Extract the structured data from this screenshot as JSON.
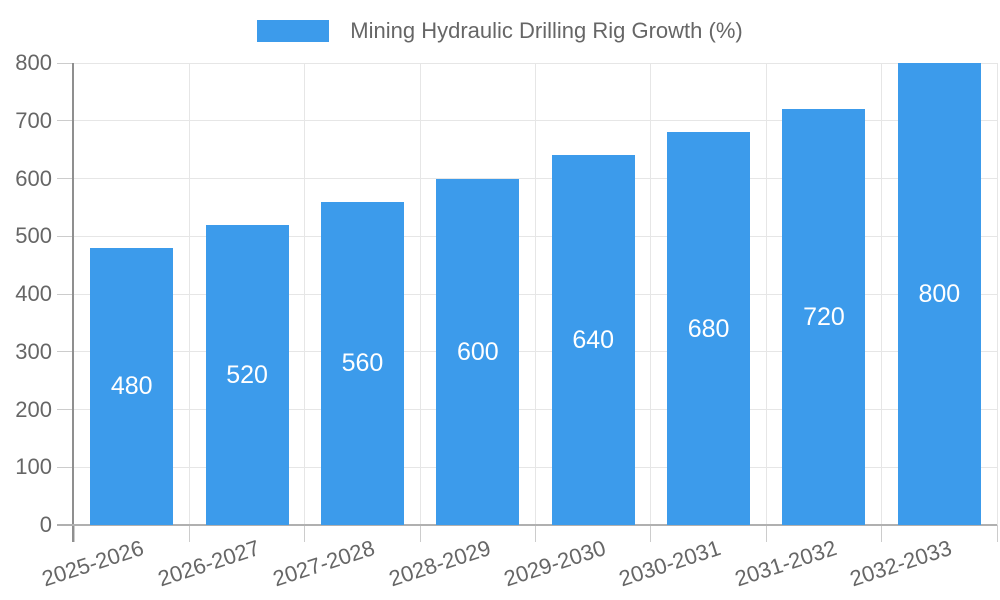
{
  "chart_data": {
    "type": "bar",
    "legend_label": "Mining Hydraulic Drilling Rig Growth (%)",
    "legend_position": "top",
    "categories": [
      "2025-2026",
      "2026-2027",
      "2027-2028",
      "2028-2029",
      "2029-2030",
      "2030-2031",
      "2031-2032",
      "2032-2033"
    ],
    "values": [
      480,
      520,
      560,
      600,
      640,
      680,
      720,
      800
    ],
    "bar_value_labels": [
      "480",
      "520",
      "560",
      "600",
      "640",
      "680",
      "720",
      "800"
    ],
    "xlabel": "",
    "ylabel": "",
    "ylim": [
      0,
      800
    ],
    "yticks": [
      0,
      100,
      200,
      300,
      400,
      500,
      600,
      700,
      800
    ],
    "grid": true,
    "x_label_rotation_deg": -18,
    "colors": {
      "bar": "#3C9BEB",
      "bar_label_text": "#FFFFFF",
      "axis_text": "#666666",
      "grid_line": "#E6E6E6",
      "tick_mark": "#CCCCCC",
      "y_axis_line": "#8F8F8F",
      "x_axis_line": "#B0B0B0",
      "background": "#FFFFFF"
    }
  }
}
